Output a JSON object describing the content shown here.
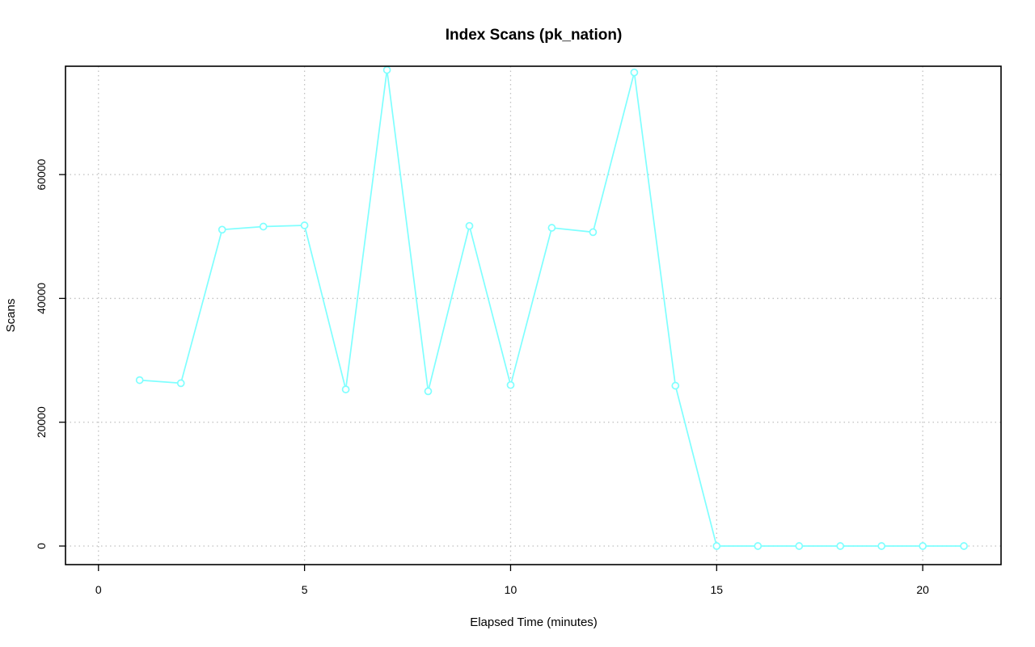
{
  "chart_data": {
    "type": "line",
    "title": "Index Scans (pk_nation)",
    "xlabel": "Elapsed Time (minutes)",
    "ylabel": "Scans",
    "xlim": [
      -0.8,
      21.9
    ],
    "ylim": [
      -3000,
      77500
    ],
    "x_ticks": [
      0,
      5,
      10,
      15,
      20
    ],
    "y_ticks": [
      0,
      20000,
      40000,
      60000
    ],
    "grid": true,
    "legend": "none",
    "series": [
      {
        "color": "#7fffff",
        "x": [
          1,
          2,
          3,
          4,
          5,
          6,
          7,
          8,
          9,
          10,
          11,
          12,
          13,
          14,
          15,
          16,
          17,
          18,
          19,
          20,
          21
        ],
        "values": [
          26800,
          26300,
          51100,
          51600,
          51800,
          25300,
          76900,
          25000,
          51700,
          26000,
          51400,
          50700,
          76500,
          25900,
          0,
          0,
          0,
          0,
          0,
          0,
          0
        ]
      }
    ]
  }
}
